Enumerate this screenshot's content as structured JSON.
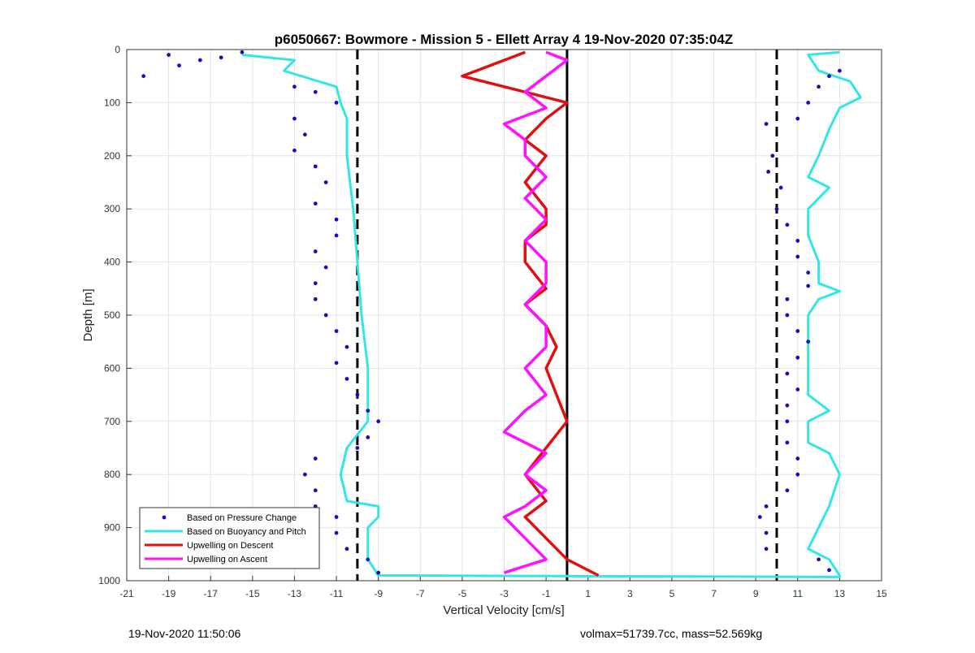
{
  "chart_data": {
    "type": "scatter",
    "title": "p6050667: Bowmore - Mission 5 - Ellett Array 4 19-Nov-2020 07:35:04Z",
    "xlabel": "Vertical Velocity [cm/s]",
    "ylabel": "Depth [m]",
    "xlim": [
      -21,
      15
    ],
    "ylim": [
      0,
      1000
    ],
    "y_reversed": true,
    "grid": true,
    "x_ticks": [
      "-21",
      "-19",
      "-17",
      "-15",
      "-13",
      "-11",
      "-9",
      "-7",
      "-5",
      "-3",
      "-1",
      "1",
      "3",
      "5",
      "7",
      "9",
      "11",
      "13",
      "15"
    ],
    "y_ticks": [
      "0",
      "100",
      "200",
      "300",
      "400",
      "500",
      "600",
      "700",
      "800",
      "900",
      "1000"
    ],
    "legend_position": "bottom-left",
    "colors": {
      "pressure": "#1010c0",
      "buoyancy": "#33e6e6",
      "descent": "#e01010",
      "ascent": "#ff10ff",
      "dashed": "#000000",
      "zero_line": "#000000"
    },
    "reference_lines": {
      "dashed_x": [
        -10,
        10
      ],
      "solid_x": 0
    },
    "series": [
      {
        "name": "Based on Pressure Change",
        "marker": "dot",
        "points": [
          [
            -20.2,
            50
          ],
          [
            -19,
            10
          ],
          [
            -18.5,
            30
          ],
          [
            -17.5,
            20
          ],
          [
            -16.5,
            15
          ],
          [
            -15.5,
            5
          ],
          [
            -13,
            70
          ],
          [
            -12,
            80
          ],
          [
            -11,
            100
          ],
          [
            -13,
            130
          ],
          [
            -12.5,
            160
          ],
          [
            -13,
            190
          ],
          [
            -12,
            220
          ],
          [
            -11.5,
            250
          ],
          [
            -12,
            290
          ],
          [
            -11,
            320
          ],
          [
            -11,
            350
          ],
          [
            -12,
            380
          ],
          [
            -11.5,
            410
          ],
          [
            -12,
            440
          ],
          [
            -12,
            470
          ],
          [
            -11.5,
            500
          ],
          [
            -11,
            530
          ],
          [
            -10.5,
            560
          ],
          [
            -11,
            590
          ],
          [
            -10.5,
            620
          ],
          [
            -10,
            650
          ],
          [
            -9.5,
            680
          ],
          [
            -9,
            700
          ],
          [
            -9.5,
            730
          ],
          [
            -10,
            750
          ],
          [
            -12,
            770
          ],
          [
            -12.5,
            800
          ],
          [
            -12,
            830
          ],
          [
            -12,
            860
          ],
          [
            -11,
            880
          ],
          [
            -11,
            910
          ],
          [
            -10.5,
            940
          ],
          [
            -9.5,
            960
          ],
          [
            -9,
            985
          ],
          [
            9.5,
            140
          ],
          [
            9.8,
            200
          ],
          [
            9.6,
            230
          ],
          [
            10.2,
            260
          ],
          [
            10,
            300
          ],
          [
            10.5,
            330
          ],
          [
            11,
            360
          ],
          [
            11,
            390
          ],
          [
            11.5,
            420
          ],
          [
            11.5,
            445
          ],
          [
            10.5,
            470
          ],
          [
            10.5,
            500
          ],
          [
            11,
            530
          ],
          [
            11.5,
            550
          ],
          [
            11,
            580
          ],
          [
            10.5,
            610
          ],
          [
            11,
            640
          ],
          [
            10.5,
            670
          ],
          [
            10.5,
            700
          ],
          [
            10.5,
            740
          ],
          [
            11,
            770
          ],
          [
            11,
            800
          ],
          [
            10.5,
            830
          ],
          [
            9.5,
            860
          ],
          [
            9.2,
            880
          ],
          [
            9.5,
            910
          ],
          [
            9.5,
            940
          ],
          [
            12,
            960
          ],
          [
            12.5,
            980
          ],
          [
            12,
            70
          ],
          [
            12.5,
            50
          ],
          [
            11.5,
            100
          ],
          [
            11,
            130
          ],
          [
            13,
            40
          ]
        ]
      },
      {
        "name": "Based on Buoyancy and Pitch",
        "marker": "line",
        "points": [
          [
            -15.5,
            10
          ],
          [
            -13,
            20
          ],
          [
            -13.5,
            40
          ],
          [
            -11,
            70
          ],
          [
            -10.8,
            100
          ],
          [
            -10.5,
            130
          ],
          [
            -10.5,
            200
          ],
          [
            -10.2,
            300
          ],
          [
            -10,
            400
          ],
          [
            -9.8,
            500
          ],
          [
            -9.5,
            600
          ],
          [
            -9.5,
            700
          ],
          [
            -10.5,
            750
          ],
          [
            -10.8,
            800
          ],
          [
            -10.5,
            850
          ],
          [
            -9,
            860
          ],
          [
            -9,
            880
          ],
          [
            -9.5,
            900
          ],
          [
            -9.5,
            960
          ],
          [
            -9,
            990
          ],
          [
            13,
            993
          ],
          [
            13,
            990
          ],
          [
            12.5,
            960
          ],
          [
            11.5,
            940
          ],
          [
            12,
            900
          ],
          [
            12.5,
            860
          ],
          [
            13,
            800
          ],
          [
            12.5,
            760
          ],
          [
            11.5,
            740
          ],
          [
            11.5,
            700
          ],
          [
            12.5,
            680
          ],
          [
            11.5,
            650
          ],
          [
            11.5,
            600
          ],
          [
            11.5,
            550
          ],
          [
            11.5,
            500
          ],
          [
            12,
            470
          ],
          [
            13,
            455
          ],
          [
            12,
            440
          ],
          [
            12,
            400
          ],
          [
            11.5,
            350
          ],
          [
            11.5,
            300
          ],
          [
            12.5,
            260
          ],
          [
            11.5,
            240
          ],
          [
            12,
            200
          ],
          [
            12.5,
            150
          ],
          [
            13,
            110
          ],
          [
            14,
            90
          ],
          [
            13.5,
            60
          ],
          [
            12,
            40
          ],
          [
            11.5,
            10
          ],
          [
            13,
            5
          ]
        ]
      },
      {
        "name": "Upwelling on Descent",
        "marker": "line",
        "points": [
          [
            -2,
            5
          ],
          [
            -5,
            50
          ],
          [
            -2,
            80
          ],
          [
            0,
            100
          ],
          [
            -1,
            130
          ],
          [
            -2,
            170
          ],
          [
            -1,
            200
          ],
          [
            -2,
            250
          ],
          [
            -1,
            300
          ],
          [
            -1,
            330
          ],
          [
            -2,
            360
          ],
          [
            -2,
            400
          ],
          [
            -1,
            450
          ],
          [
            -2,
            480
          ],
          [
            -1,
            520
          ],
          [
            -0.5,
            560
          ],
          [
            -1,
            600
          ],
          [
            -0.5,
            650
          ],
          [
            0,
            700
          ],
          [
            -1,
            750
          ],
          [
            -2,
            800
          ],
          [
            -1,
            850
          ],
          [
            -2,
            880
          ],
          [
            -1,
            920
          ],
          [
            0,
            960
          ],
          [
            1.5,
            990
          ]
        ]
      },
      {
        "name": "Upwelling on Ascent",
        "marker": "line",
        "points": [
          [
            -3,
            985
          ],
          [
            -1,
            960
          ],
          [
            -2,
            920
          ],
          [
            -3,
            880
          ],
          [
            -2,
            860
          ],
          [
            -1,
            830
          ],
          [
            -2,
            800
          ],
          [
            -1,
            760
          ],
          [
            -3,
            720
          ],
          [
            -2,
            680
          ],
          [
            -1,
            650
          ],
          [
            -2,
            600
          ],
          [
            -1,
            560
          ],
          [
            -1,
            520
          ],
          [
            -2,
            480
          ],
          [
            -1,
            440
          ],
          [
            -1,
            400
          ],
          [
            -2,
            360
          ],
          [
            -1,
            320
          ],
          [
            -2,
            280
          ],
          [
            -1,
            240
          ],
          [
            -2,
            200
          ],
          [
            -2,
            170
          ],
          [
            -3,
            140
          ],
          [
            -1,
            110
          ],
          [
            -2,
            80
          ],
          [
            -1,
            50
          ],
          [
            0,
            20
          ],
          [
            -1,
            5
          ]
        ]
      }
    ]
  },
  "footer": {
    "left": "19-Nov-2020 11:50:06",
    "right": "volmax=51739.7cc, mass=52.569kg"
  }
}
